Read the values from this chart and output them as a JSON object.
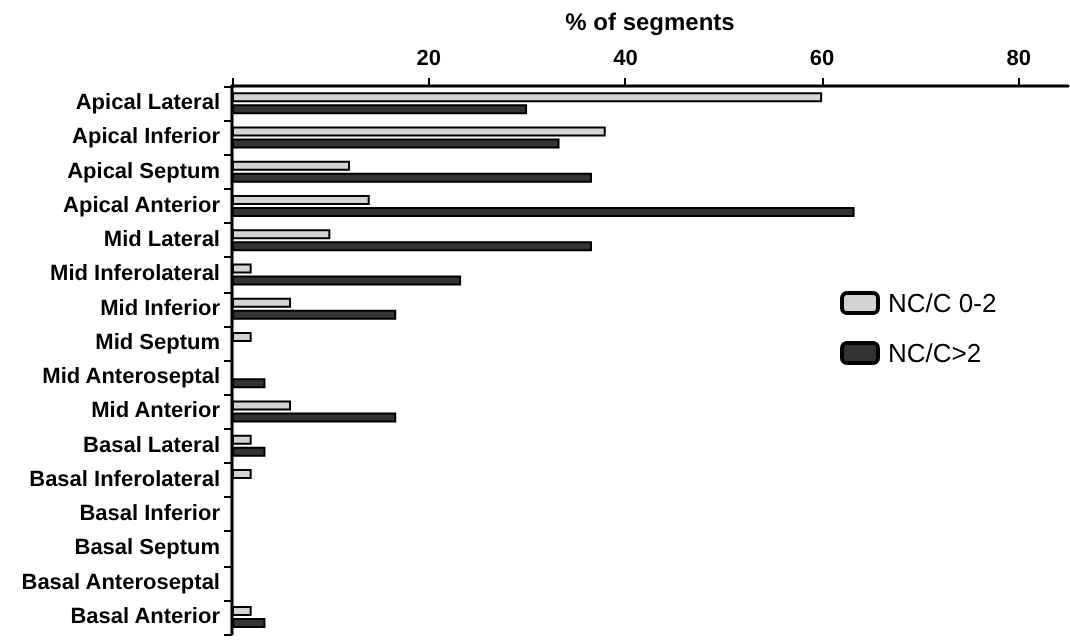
{
  "chart_data": {
    "type": "bar",
    "orientation": "horizontal",
    "xlabel": "% of segments",
    "categories": [
      "Apical Lateral",
      "Apical Inferior",
      "Apical Septum",
      "Apical Anterior",
      "Mid Lateral",
      "Mid Inferolateral",
      "Mid Inferior",
      "Mid Septum",
      "Mid Anteroseptal",
      "Mid Anterior",
      "Basal Lateral",
      "Basal Inferolateral",
      "Basal Inferior",
      "Basal Septum",
      "Basal Anteroseptal",
      "Basal Anterior"
    ],
    "series": [
      {
        "name": "NC/C 0-2",
        "color": "#d3d3d3",
        "values": [
          60,
          38,
          12,
          14,
          10,
          2,
          6,
          2,
          0,
          6,
          2,
          2,
          0,
          0,
          0,
          2
        ]
      },
      {
        "name": "NC/C>2",
        "color": "#333333",
        "values": [
          30,
          33.3,
          36.6,
          63.3,
          36.6,
          23.3,
          16.7,
          0,
          3.4,
          16.7,
          3.4,
          0,
          0,
          0,
          0,
          3.4
        ]
      }
    ],
    "xlim": [
      0,
      85
    ],
    "xticks": [
      {
        "value": 0,
        "label": null
      },
      20,
      40,
      60,
      80
    ],
    "grid": false,
    "legend": "right"
  }
}
